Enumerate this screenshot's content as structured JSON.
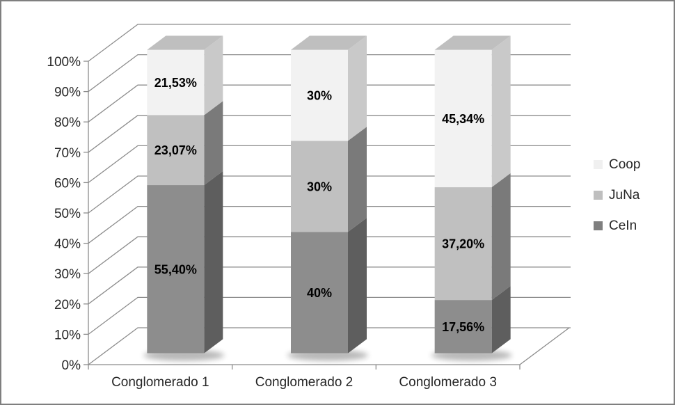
{
  "chart_data": {
    "type": "bar",
    "subtype": "100%-stacked-column-3d",
    "title": "",
    "categories": [
      "Conglomerado 1",
      "Conglomerado 2",
      "Conglomerado 3"
    ],
    "series": [
      {
        "name": "CeIn",
        "values": [
          55.4,
          40,
          17.56
        ],
        "value_labels": [
          "55,40%",
          "40%",
          "17,56%"
        ],
        "front_color": "#8D8D8D",
        "side_color": "#5E5E5E",
        "swatch_color": "#7F7F7F"
      },
      {
        "name": "JuNa",
        "values": [
          23.07,
          30,
          37.2
        ],
        "value_labels": [
          "23,07%",
          "30%",
          "37,20%"
        ],
        "front_color": "#C0C0C0",
        "side_color": "#7A7A7A",
        "swatch_color": "#BFBFBF"
      },
      {
        "name": "Coop",
        "values": [
          21.53,
          30,
          45.34
        ],
        "value_labels": [
          "21,53%",
          "30%",
          "45,34%"
        ],
        "front_color": "#F2F2F2",
        "side_color": "#C9C9C9",
        "swatch_color": "#F0F0F0"
      }
    ],
    "top_face_color": "#BFBFBF",
    "y_axis": {
      "min": 0,
      "max": 100,
      "step": 10,
      "tick_labels": [
        "0%",
        "10%",
        "20%",
        "30%",
        "40%",
        "50%",
        "60%",
        "70%",
        "80%",
        "90%",
        "100%"
      ]
    },
    "legend": {
      "position": "right",
      "entries": [
        "Coop",
        "JuNa",
        "CeIn"
      ]
    },
    "grid": true,
    "gridline_color": "#8C8C8C",
    "axis_color": "#8C8C8C",
    "axis_text_color": "#262626",
    "data_label_color": "#000000",
    "frame_border_color": "#7F7F7F",
    "background_color": "#FFFFFF"
  }
}
